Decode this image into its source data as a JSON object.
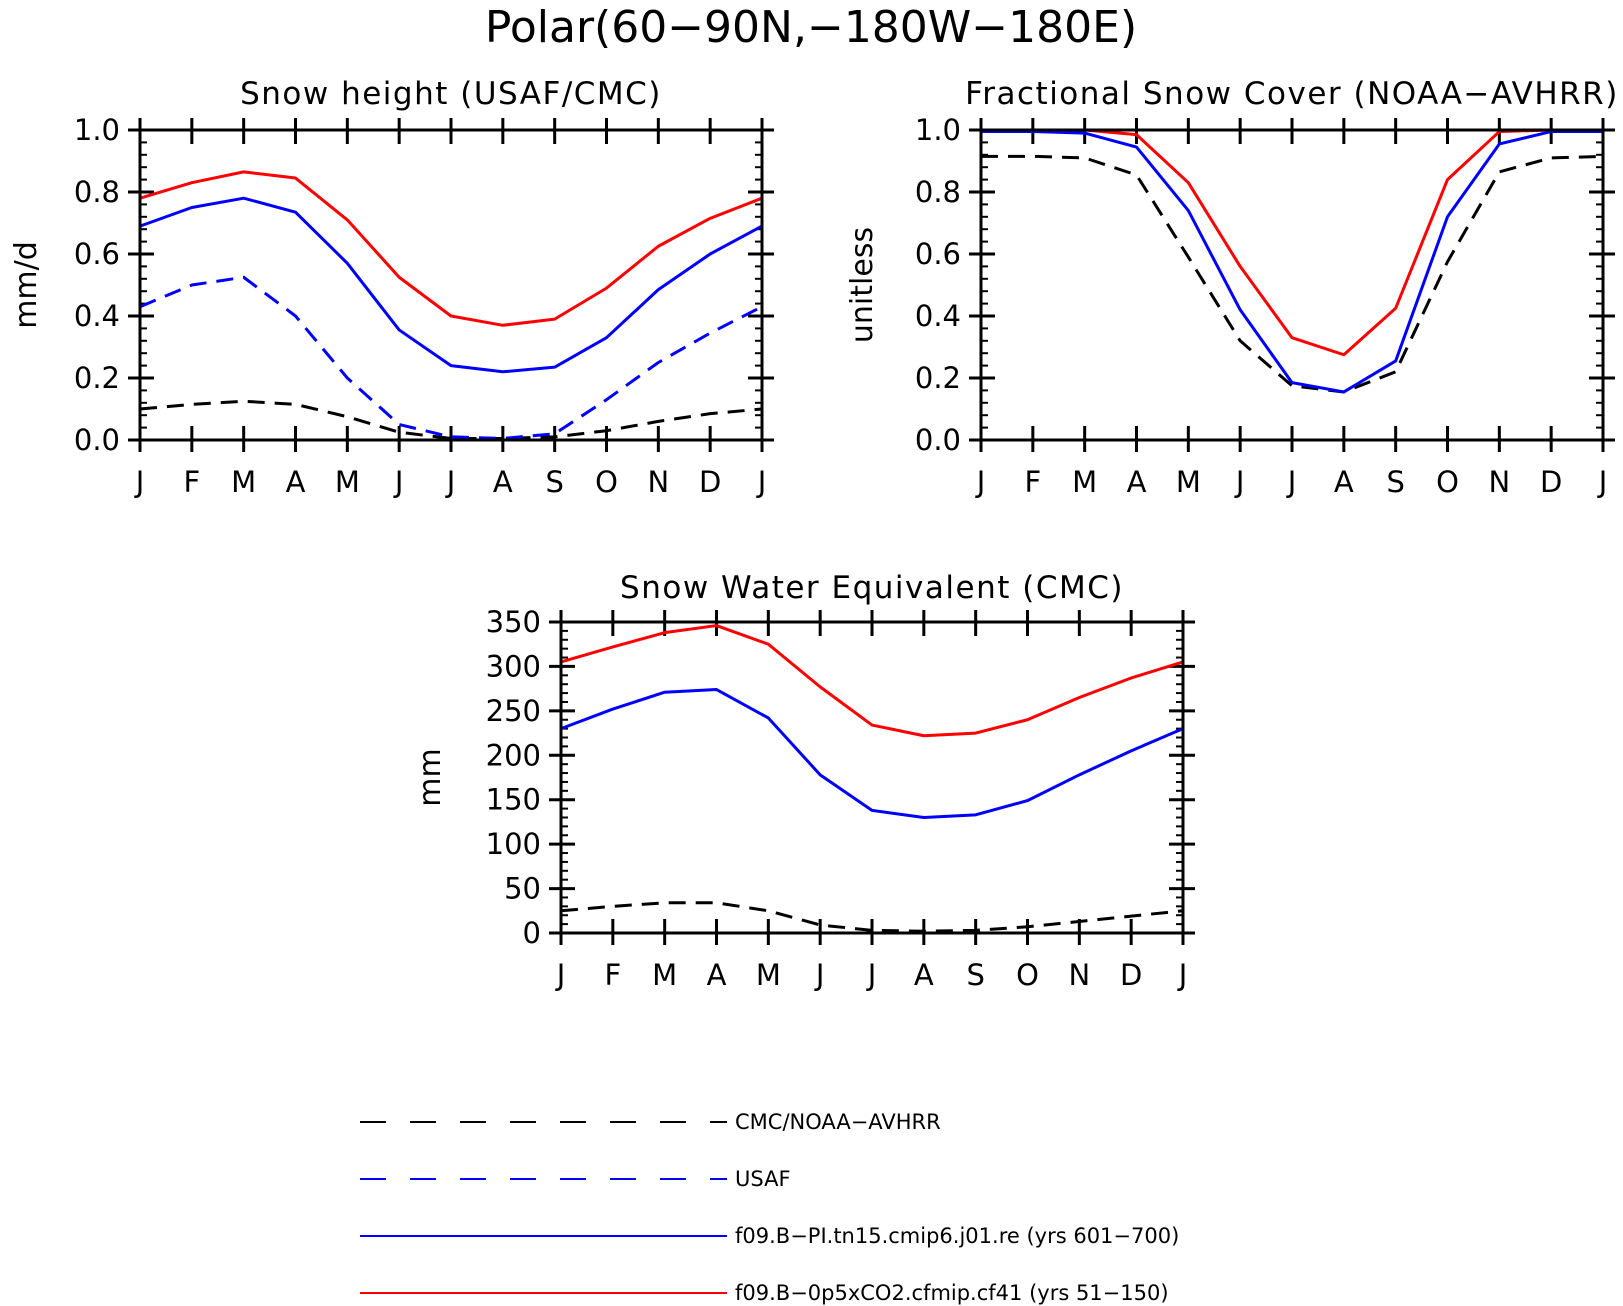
{
  "page": {
    "title": "Polar(60−90N,−180W−180E)"
  },
  "colors": {
    "obs": "#000000",
    "usaf": "#0000ff",
    "model_pi": "#0000ff",
    "model_0p5x": "#ff0000"
  },
  "chart_data": [
    {
      "type": "line",
      "title": "Snow height (USAF/CMC)",
      "xlabel": "",
      "ylabel": "mm/d",
      "categories": [
        "J",
        "F",
        "M",
        "A",
        "M",
        "J",
        "J",
        "A",
        "S",
        "O",
        "N",
        "D",
        "J"
      ],
      "ylim": [
        0,
        1.0
      ],
      "yticks": [
        "0.0",
        "0.2",
        "0.4",
        "0.6",
        "0.8",
        "1.0"
      ],
      "series": [
        {
          "name": "CMC/NOAA-AVHRR",
          "style": "dashed",
          "color": "#000000",
          "values": [
            0.1,
            0.115,
            0.125,
            0.115,
            0.075,
            0.025,
            0.005,
            0.005,
            0.01,
            0.03,
            0.06,
            0.085,
            0.1
          ]
        },
        {
          "name": "USAF",
          "style": "dashed",
          "color": "#0000ff",
          "values": [
            0.43,
            0.5,
            0.525,
            0.4,
            0.2,
            0.05,
            0.01,
            0.005,
            0.02,
            0.13,
            0.25,
            0.345,
            0.43
          ]
        },
        {
          "name": "f09.B−PI.tn15.cmip6.j01.re (yrs 601−700)",
          "style": "solid",
          "color": "#0000ff",
          "values": [
            0.69,
            0.75,
            0.78,
            0.735,
            0.57,
            0.355,
            0.24,
            0.22,
            0.235,
            0.33,
            0.485,
            0.6,
            0.69
          ]
        },
        {
          "name": "f09.B−0p5xCO2.cfmip.cf41 (yrs 51−150)",
          "style": "solid",
          "color": "#ff0000",
          "values": [
            0.78,
            0.83,
            0.865,
            0.845,
            0.71,
            0.525,
            0.4,
            0.37,
            0.39,
            0.49,
            0.625,
            0.715,
            0.78
          ]
        }
      ]
    },
    {
      "type": "line",
      "title": "Fractional Snow Cover (NOAA−AVHRR)",
      "xlabel": "",
      "ylabel": "unitless",
      "categories": [
        "J",
        "F",
        "M",
        "A",
        "M",
        "J",
        "J",
        "A",
        "S",
        "O",
        "N",
        "D",
        "J"
      ],
      "ylim": [
        0,
        1.0
      ],
      "yticks": [
        "0.0",
        "0.2",
        "0.4",
        "0.6",
        "0.8",
        "1.0"
      ],
      "series": [
        {
          "name": "CMC/NOAA-AVHRR",
          "style": "dashed",
          "color": "#000000",
          "values": [
            0.915,
            0.915,
            0.91,
            0.855,
            0.59,
            0.32,
            0.175,
            0.155,
            0.22,
            0.575,
            0.865,
            0.91,
            0.915
          ]
        },
        {
          "name": "f09.B−PI.tn15.cmip6.j01.re (yrs 601−700)",
          "style": "solid",
          "color": "#0000ff",
          "values": [
            0.995,
            0.995,
            0.99,
            0.945,
            0.74,
            0.42,
            0.185,
            0.155,
            0.255,
            0.72,
            0.955,
            0.995,
            0.995
          ]
        },
        {
          "name": "f09.B−0p5xCO2.cfmip.cf41 (yrs 51−150)",
          "style": "solid",
          "color": "#ff0000",
          "values": [
            1.0,
            1.0,
            1.0,
            0.985,
            0.83,
            0.56,
            0.33,
            0.275,
            0.425,
            0.84,
            0.995,
            1.0,
            1.0
          ]
        }
      ]
    },
    {
      "type": "line",
      "title": "Snow Water Equivalent (CMC)",
      "xlabel": "",
      "ylabel": "mm",
      "categories": [
        "J",
        "F",
        "M",
        "A",
        "M",
        "J",
        "J",
        "A",
        "S",
        "O",
        "N",
        "D",
        "J"
      ],
      "ylim": [
        0,
        350
      ],
      "yticks": [
        "0",
        "50",
        "100",
        "150",
        "200",
        "250",
        "300",
        "350"
      ],
      "series": [
        {
          "name": "CMC/NOAA-AVHRR",
          "style": "dashed",
          "color": "#000000",
          "values": [
            25,
            30,
            34,
            34,
            25,
            9,
            3,
            2,
            3,
            7,
            13,
            19,
            25
          ]
        },
        {
          "name": "f09.B−PI.tn15.cmip6.j01.re (yrs 601−700)",
          "style": "solid",
          "color": "#0000ff",
          "values": [
            230,
            252,
            271,
            274,
            242,
            178,
            138,
            130,
            133,
            149,
            178,
            205,
            230
          ]
        },
        {
          "name": "f09.B−0p5xCO2.cfmip.cf41 (yrs 51−150)",
          "style": "solid",
          "color": "#ff0000",
          "values": [
            305,
            322,
            338,
            346,
            325,
            277,
            234,
            222,
            225,
            240,
            265,
            287,
            305
          ]
        }
      ]
    }
  ],
  "legend": [
    {
      "label": "CMC/NOAA−AVHRR",
      "style": "dashed",
      "color": "#000000"
    },
    {
      "label": "USAF",
      "style": "dashed",
      "color": "#0000ff"
    },
    {
      "label": "f09.B−PI.tn15.cmip6.j01.re (yrs 601−700)",
      "style": "solid",
      "color": "#0000ff"
    },
    {
      "label": "f09.B−0p5xCO2.cfmip.cf41 (yrs 51−150)",
      "style": "solid",
      "color": "#ff0000"
    }
  ]
}
